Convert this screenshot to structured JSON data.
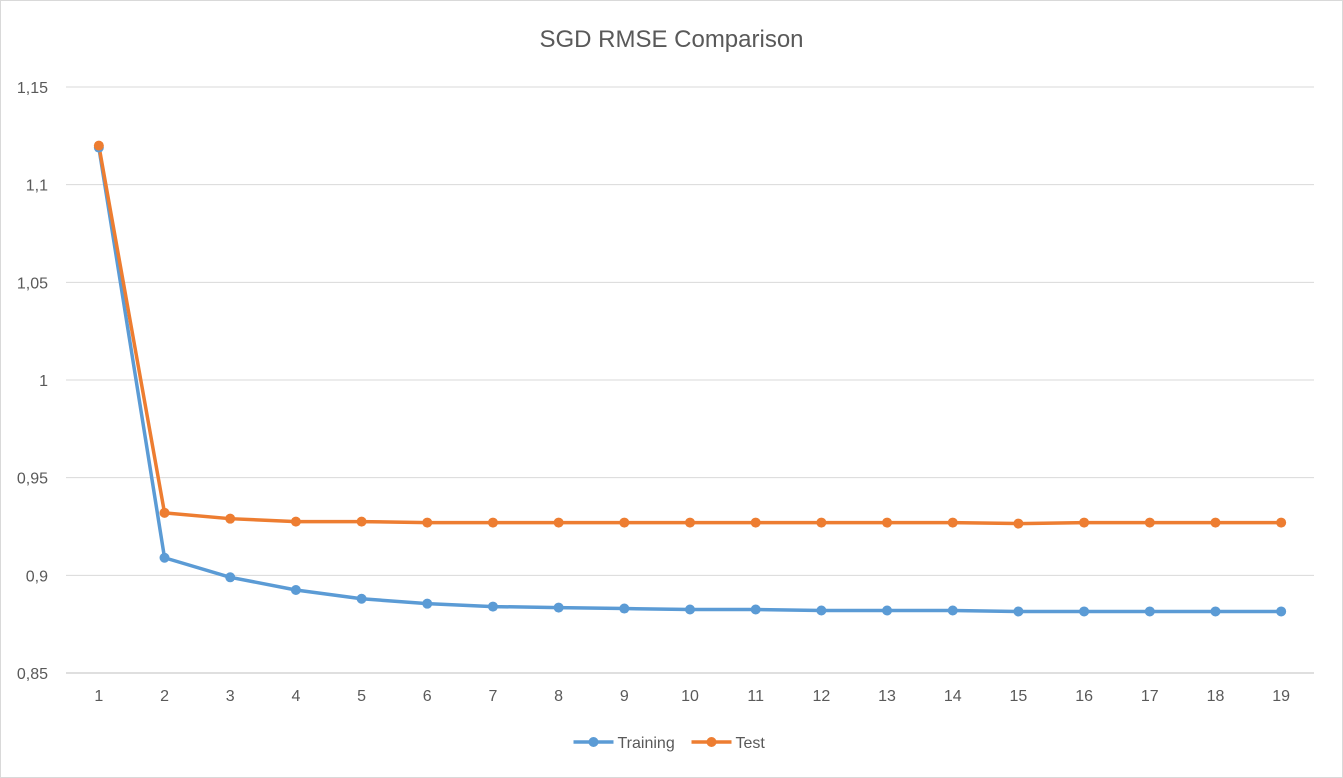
{
  "chart_data": {
    "type": "line",
    "title": "SGD RMSE Comparison",
    "xlabel": "",
    "ylabel": "",
    "categories": [
      "1",
      "2",
      "3",
      "4",
      "5",
      "6",
      "7",
      "8",
      "9",
      "10",
      "11",
      "12",
      "13",
      "14",
      "15",
      "16",
      "17",
      "18",
      "19"
    ],
    "ylim": [
      0.85,
      1.15
    ],
    "y_ticks": [
      0.85,
      0.9,
      0.95,
      1,
      1.05,
      1.1,
      1.15
    ],
    "y_tick_labels": [
      "0,85",
      "0,9",
      "0,95",
      "1",
      "1,05",
      "1,1",
      "1,15"
    ],
    "grid": true,
    "legend_position": "bottom",
    "series": [
      {
        "name": "Training",
        "color": "#5b9bd5",
        "values": [
          1.119,
          0.909,
          0.899,
          0.8925,
          0.888,
          0.8855,
          0.884,
          0.8835,
          0.883,
          0.8825,
          0.8825,
          0.882,
          0.882,
          0.882,
          0.8815,
          0.8815,
          0.8815,
          0.8815,
          0.8815
        ]
      },
      {
        "name": "Test",
        "color": "#ed7d31",
        "values": [
          1.12,
          0.932,
          0.929,
          0.9275,
          0.9275,
          0.927,
          0.927,
          0.927,
          0.927,
          0.927,
          0.927,
          0.927,
          0.927,
          0.927,
          0.9265,
          0.927,
          0.927,
          0.927,
          0.927
        ]
      }
    ]
  }
}
